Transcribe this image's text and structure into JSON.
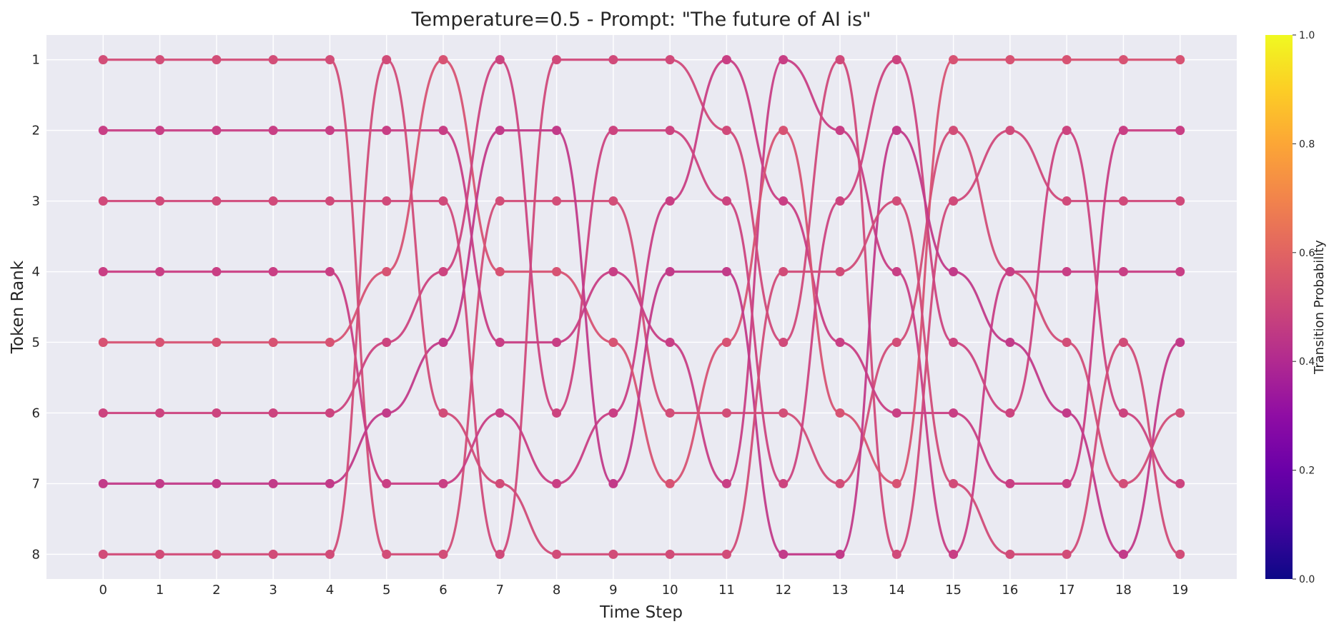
{
  "chart_data": {
    "type": "line",
    "title": "Temperature=0.5 - Prompt: \"The future of AI is\"",
    "xlabel": "Time Step",
    "ylabel": "Token Rank",
    "x": [
      0,
      1,
      2,
      3,
      4,
      5,
      6,
      7,
      8,
      9,
      10,
      11,
      12,
      13,
      14,
      15,
      16,
      17,
      18,
      19
    ],
    "xlim": [
      -1,
      20
    ],
    "ylim": [
      8.35,
      0.65
    ],
    "y_ticks": [
      1,
      2,
      3,
      4,
      5,
      6,
      7,
      8
    ],
    "y_inverted": true,
    "grid": true,
    "colormap": "plasma",
    "colorbar": {
      "label": "Transition Probability",
      "range": [
        0.0,
        1.0
      ],
      "ticks": [
        "0.0",
        "0.2",
        "0.4",
        "0.6",
        "0.8",
        "1.0"
      ]
    },
    "trajectory_color_range": [
      "#c13a8a",
      "#dd5a68"
    ],
    "series": [
      {
        "ranks": [
          1,
          1,
          1,
          1,
          1,
          8,
          8,
          3,
          3,
          3,
          6,
          6,
          6,
          7,
          5,
          2,
          4,
          5,
          7,
          6
        ],
        "color": "#d24e78"
      },
      {
        "ranks": [
          2,
          2,
          2,
          2,
          2,
          2,
          2,
          5,
          5,
          4,
          5,
          7,
          1,
          2,
          4,
          8,
          4,
          4,
          4,
          4
        ],
        "color": "#c83f85"
      },
      {
        "ranks": [
          3,
          3,
          3,
          3,
          3,
          3,
          3,
          8,
          1,
          1,
          1,
          2,
          5,
          1,
          8,
          3,
          2,
          3,
          3,
          3
        ],
        "color": "#d04a7a"
      },
      {
        "ranks": [
          4,
          4,
          4,
          4,
          4,
          7,
          7,
          6,
          7,
          6,
          3,
          1,
          3,
          5,
          6,
          6,
          7,
          7,
          2,
          2
        ],
        "color": "#c93f84"
      },
      {
        "ranks": [
          5,
          5,
          5,
          5,
          5,
          4,
          1,
          4,
          4,
          5,
          7,
          5,
          2,
          6,
          7,
          1,
          1,
          1,
          1,
          1
        ],
        "color": "#d75373"
      },
      {
        "ranks": [
          6,
          6,
          6,
          6,
          6,
          5,
          4,
          1,
          6,
          2,
          2,
          3,
          7,
          3,
          1,
          5,
          6,
          2,
          6,
          7
        ],
        "color": "#cc447f"
      },
      {
        "ranks": [
          7,
          7,
          7,
          7,
          7,
          6,
          5,
          2,
          2,
          7,
          4,
          4,
          8,
          8,
          2,
          4,
          5,
          6,
          8,
          5
        ],
        "color": "#c23b89"
      },
      {
        "ranks": [
          8,
          8,
          8,
          8,
          8,
          1,
          6,
          7,
          8,
          8,
          8,
          8,
          4,
          4,
          3,
          7,
          8,
          8,
          5,
          8
        ],
        "color": "#d14c78"
      }
    ]
  }
}
